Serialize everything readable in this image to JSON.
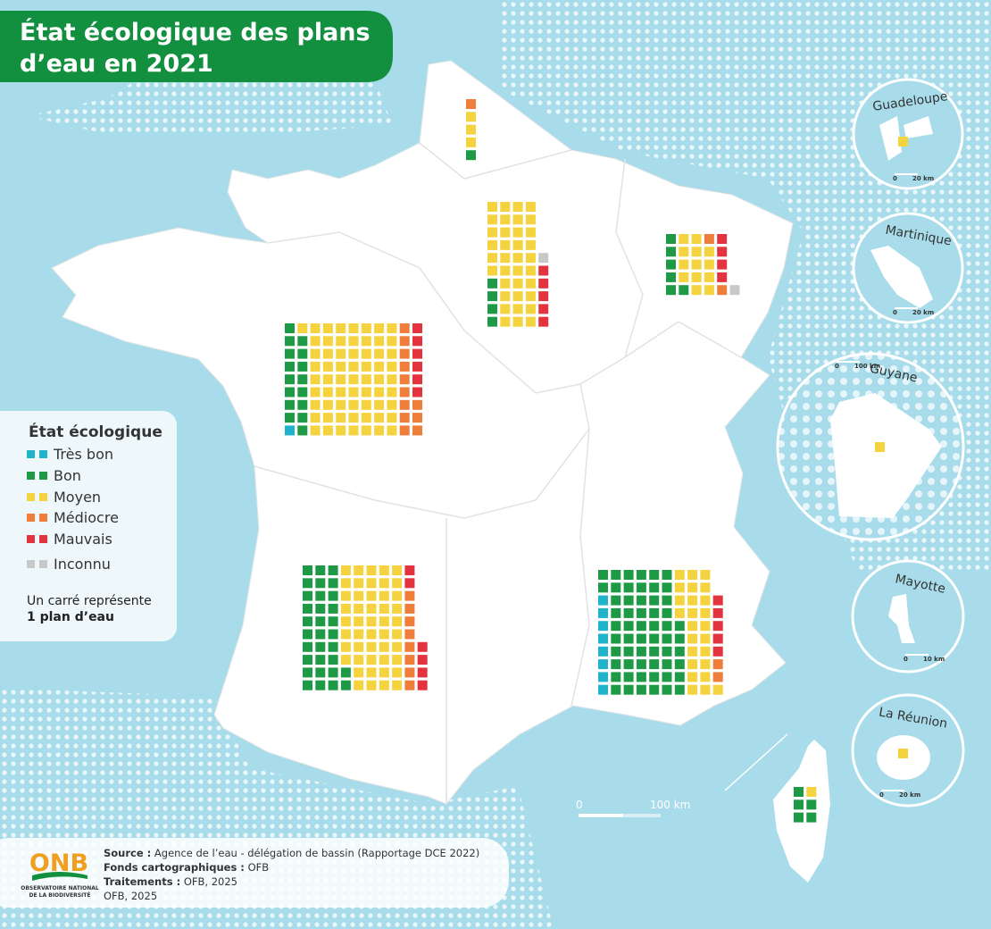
{
  "title_lines": [
    "État écologique des plans",
    "d’eau en 2021"
  ],
  "legend": {
    "title": "État écologique",
    "items": [
      {
        "label": "Très bon",
        "color": "#1fb3cc"
      },
      {
        "label": "Bon",
        "color": "#1e9a46"
      },
      {
        "label": "Moyen",
        "color": "#f5d33f"
      },
      {
        "label": "Médiocre",
        "color": "#ef7e3b"
      },
      {
        "label": "Mauvais",
        "color": "#e2333f"
      },
      {
        "label": "Inconnu",
        "color": "#c8c8c8"
      }
    ],
    "note": [
      "Un carré représente",
      "1 plan d’eau"
    ]
  },
  "basins": [
    {
      "counts": [
        0,
        1,
        3,
        1,
        0,
        0
      ]
    },
    {
      "counts": [
        0,
        4,
        36,
        0,
        5,
        1
      ]
    },
    {
      "counts": [
        0,
        6,
        13,
        2,
        4,
        1
      ]
    },
    {
      "counts": [
        1,
        16,
        64,
        12,
        6,
        0
      ]
    },
    {
      "counts": [
        0,
        32,
        48,
        8,
        6,
        0
      ]
    },
    {
      "counts": [
        8,
        58,
        25,
        2,
        5,
        0
      ]
    },
    {
      "counts": [
        0,
        5,
        1,
        0,
        0,
        0
      ]
    }
  ],
  "territories": [
    {
      "name": "Guadeloupe",
      "scale_start": "0",
      "scale_end": "20 km",
      "counts": [
        0,
        0,
        1,
        0,
        0,
        0
      ]
    },
    {
      "name": "Martinique",
      "scale_start": "0",
      "scale_end": "20 km",
      "counts": [
        0,
        0,
        0,
        0,
        0,
        0
      ]
    },
    {
      "name": "Guyane",
      "scale_start": "0",
      "scale_end": "100 km",
      "counts": [
        0,
        0,
        1,
        0,
        0,
        0
      ]
    },
    {
      "name": "Mayotte",
      "scale_start": "0",
      "scale_end": "10 km",
      "counts": [
        0,
        0,
        0,
        0,
        0,
        0
      ]
    },
    {
      "name": "La Réunion",
      "scale_start": "0",
      "scale_end": "20 km",
      "counts": [
        0,
        0,
        1,
        0,
        0,
        0
      ]
    }
  ],
  "scale_bar": {
    "start": "0",
    "end": "100 km"
  },
  "source": [
    {
      "label": "Source :",
      "text": "Agence de l’eau - délégation de bassin (Rapportage DCE 2022)"
    },
    {
      "label": "Fonds cartographiques :",
      "text": "OFB"
    },
    {
      "label": "Traitements :",
      "text": "OFB, 2025"
    }
  ],
  "credit": "OFB, 2025",
  "logo": {
    "name": "ONB",
    "line1": "OBSERVATOIRE NATIONAL",
    "line2": "DE LA BIODIVERSITÉ"
  }
}
